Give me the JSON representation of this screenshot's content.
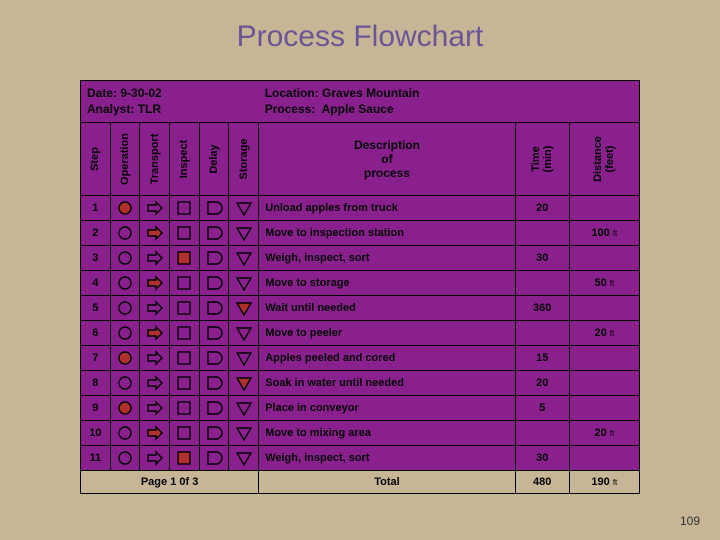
{
  "title": "Process Flowchart",
  "header": {
    "date_label": "Date:",
    "date_value": "9-30-02",
    "analyst_label": "Analyst:",
    "analyst_value": "TLR",
    "location_label": "Location:",
    "location_value": "Graves Mountain",
    "process_label": "Process:",
    "process_value": "Apple Sauce"
  },
  "columns": {
    "step": "Step",
    "operation": "Operation",
    "transport": "Transport",
    "inspect": "Inspect",
    "delay": "Delay",
    "storage": "Storage",
    "description": "Description\nof\nprocess",
    "time": "Time\n(min)",
    "distance": "Distance\n(feet)"
  },
  "symbols": {
    "operation": "circle",
    "transport": "arrow",
    "inspect": "square",
    "delay": "d-shape",
    "storage": "triangle-down"
  },
  "symbol_colors": {
    "outline": "#000000",
    "fill_unselected": "none",
    "fill_selected": "#b03030"
  },
  "rows": [
    {
      "step": "1",
      "selected": "operation",
      "desc": "Unload apples from truck",
      "time": "20",
      "dist": ""
    },
    {
      "step": "2",
      "selected": "transport",
      "desc": "Move to inspection station",
      "time": "",
      "dist": "100"
    },
    {
      "step": "3",
      "selected": "inspect",
      "desc": "Weigh, inspect, sort",
      "time": "30",
      "dist": ""
    },
    {
      "step": "4",
      "selected": "transport",
      "desc": "Move to storage",
      "time": "",
      "dist": "50"
    },
    {
      "step": "5",
      "selected": "storage",
      "desc": "Wait until needed",
      "time": "360",
      "dist": ""
    },
    {
      "step": "6",
      "selected": "transport",
      "desc": "Move to peeler",
      "time": "",
      "dist": "20"
    },
    {
      "step": "7",
      "selected": "operation",
      "desc": "Apples peeled and cored",
      "time": "15",
      "dist": ""
    },
    {
      "step": "8",
      "selected": "storage",
      "desc": "Soak in water until needed",
      "time": "20",
      "dist": ""
    },
    {
      "step": "9",
      "selected": "operation",
      "desc": "Place in conveyor",
      "time": "5",
      "dist": ""
    },
    {
      "step": "10",
      "selected": "transport",
      "desc": "Move to mixing area",
      "time": "",
      "dist": "20"
    },
    {
      "step": "11",
      "selected": "inspect",
      "desc": "Weigh, inspect, sort",
      "time": "30",
      "dist": ""
    }
  ],
  "footer": {
    "page_label": "Page 1 0f 3",
    "total_label": "Total",
    "total_time": "480",
    "total_dist": "190"
  },
  "page_number": "109",
  "dist_unit": "ft",
  "colors": {
    "page_bg": "#c6b696",
    "table_bg": "#8a1f8e",
    "border": "#000000",
    "title_color": "#6a5596"
  }
}
